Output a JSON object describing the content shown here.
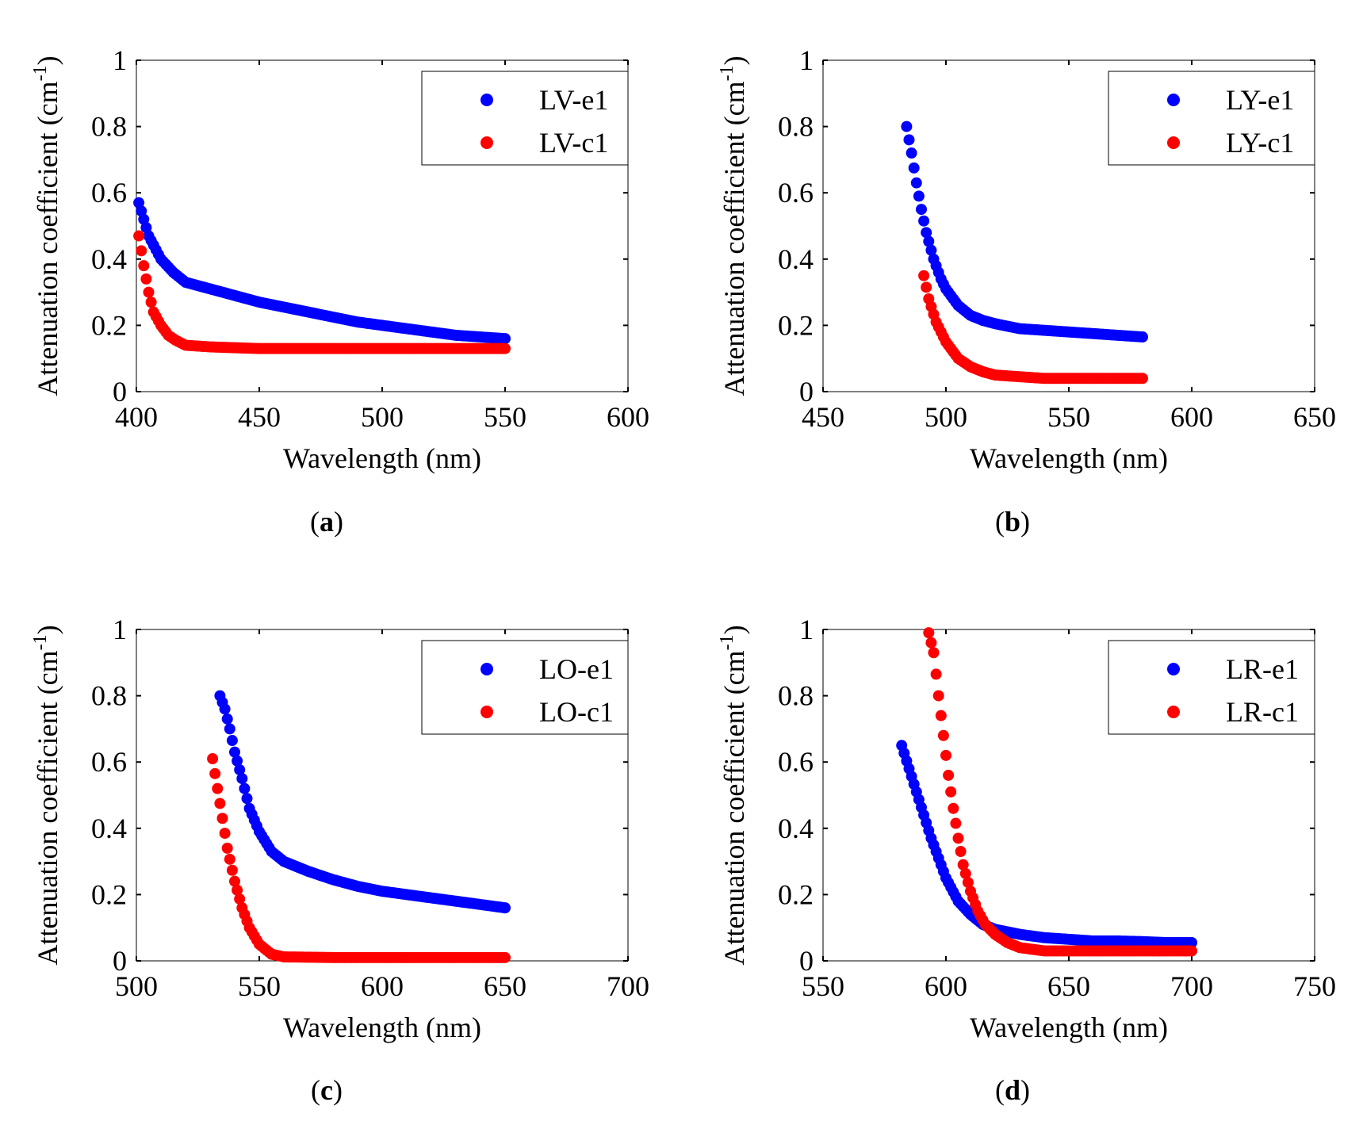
{
  "chart_data": [
    {
      "id": "a",
      "type": "scatter",
      "caption_label": "a",
      "xlabel": "Wavelength (nm)",
      "ylabel": "Attenuation coefficient (cm",
      "ylabel_sup": "-1",
      "ylabel_close": ")",
      "xlim": [
        400,
        600
      ],
      "ylim": [
        0,
        1
      ],
      "xticks": [
        "400",
        "450",
        "500",
        "550",
        "600"
      ],
      "yticks": [
        "0",
        "0.2",
        "0.4",
        "0.6",
        "0.8",
        "1"
      ],
      "legend_position": "top-right",
      "series": [
        {
          "name": "LV-e1",
          "color": "#0000ff",
          "x": [
            401,
            405,
            410,
            415,
            420,
            430,
            440,
            450,
            460,
            470,
            480,
            490,
            500,
            510,
            520,
            530,
            540,
            550
          ],
          "y": [
            0.57,
            0.47,
            0.4,
            0.36,
            0.33,
            0.31,
            0.29,
            0.27,
            0.255,
            0.24,
            0.225,
            0.21,
            0.2,
            0.19,
            0.18,
            0.17,
            0.165,
            0.16
          ]
        },
        {
          "name": "LV-c1",
          "color": "#ff0000",
          "x": [
            401,
            403,
            405,
            407,
            410,
            413,
            416,
            420,
            430,
            450,
            500,
            550
          ],
          "y": [
            0.47,
            0.38,
            0.3,
            0.24,
            0.2,
            0.17,
            0.155,
            0.14,
            0.135,
            0.13,
            0.13,
            0.13
          ]
        }
      ]
    },
    {
      "id": "b",
      "type": "scatter",
      "caption_label": "b",
      "xlabel": "Wavelength (nm)",
      "ylabel": "Attenuation coefficient (cm",
      "ylabel_sup": "-1",
      "ylabel_close": ")",
      "xlim": [
        450,
        650
      ],
      "ylim": [
        0,
        1
      ],
      "xticks": [
        "450",
        "500",
        "550",
        "600",
        "650"
      ],
      "yticks": [
        "0",
        "0.2",
        "0.4",
        "0.6",
        "0.8",
        "1"
      ],
      "legend_position": "top-right",
      "series": [
        {
          "name": "LY-e1",
          "color": "#0000ff",
          "x": [
            484,
            486,
            488,
            490,
            492,
            495,
            498,
            500,
            505,
            510,
            515,
            520,
            530,
            540,
            550,
            560,
            570,
            580
          ],
          "y": [
            0.8,
            0.72,
            0.63,
            0.55,
            0.48,
            0.4,
            0.34,
            0.31,
            0.26,
            0.23,
            0.215,
            0.205,
            0.19,
            0.185,
            0.18,
            0.175,
            0.17,
            0.165
          ]
        },
        {
          "name": "LY-c1",
          "color": "#ff0000",
          "x": [
            491,
            493,
            496,
            500,
            505,
            510,
            515,
            520,
            530,
            540,
            550,
            560,
            570,
            580
          ],
          "y": [
            0.35,
            0.28,
            0.21,
            0.15,
            0.1,
            0.075,
            0.06,
            0.05,
            0.045,
            0.04,
            0.04,
            0.04,
            0.04,
            0.04
          ]
        }
      ]
    },
    {
      "id": "c",
      "type": "scatter",
      "caption_label": "c",
      "xlabel": "Wavelength (nm)",
      "ylabel": "Attenuation coefficient (cm",
      "ylabel_sup": "-1",
      "ylabel_close": ")",
      "xlim": [
        500,
        700
      ],
      "ylim": [
        0,
        1
      ],
      "xticks": [
        "500",
        "550",
        "600",
        "650",
        "700"
      ],
      "yticks": [
        "0",
        "0.2",
        "0.4",
        "0.6",
        "0.8",
        "1"
      ],
      "legend_position": "top-right",
      "series": [
        {
          "name": "LO-e1",
          "color": "#0000ff",
          "x": [
            534,
            536,
            538,
            540,
            543,
            546,
            550,
            555,
            560,
            570,
            580,
            590,
            600,
            610,
            620,
            630,
            640,
            650
          ],
          "y": [
            0.8,
            0.76,
            0.7,
            0.63,
            0.55,
            0.46,
            0.39,
            0.33,
            0.3,
            0.27,
            0.245,
            0.225,
            0.21,
            0.2,
            0.19,
            0.18,
            0.17,
            0.16
          ]
        },
        {
          "name": "LO-c1",
          "color": "#ff0000",
          "x": [
            531,
            533,
            535,
            537,
            540,
            543,
            546,
            550,
            555,
            560,
            580,
            600,
            620,
            650
          ],
          "y": [
            0.61,
            0.52,
            0.43,
            0.34,
            0.24,
            0.16,
            0.1,
            0.05,
            0.02,
            0.012,
            0.01,
            0.01,
            0.01,
            0.01
          ]
        }
      ]
    },
    {
      "id": "d",
      "type": "scatter",
      "caption_label": "d",
      "xlabel": "Wavelength (nm)",
      "ylabel": "Attenuation coefficient (cm",
      "ylabel_sup": "-1",
      "ylabel_close": ")",
      "xlim": [
        550,
        750
      ],
      "ylim": [
        0,
        1
      ],
      "xticks": [
        "550",
        "600",
        "650",
        "700",
        "750"
      ],
      "yticks": [
        "0",
        "0.2",
        "0.4",
        "0.6",
        "0.8",
        "1"
      ],
      "legend_position": "top-right",
      "series": [
        {
          "name": "LR-e1",
          "color": "#0000ff",
          "x": [
            582,
            585,
            588,
            591,
            594,
            597,
            600,
            605,
            610,
            615,
            620,
            630,
            640,
            650,
            660,
            670,
            680,
            690,
            700
          ],
          "y": [
            0.65,
            0.58,
            0.51,
            0.44,
            0.37,
            0.31,
            0.25,
            0.18,
            0.14,
            0.11,
            0.095,
            0.08,
            0.07,
            0.065,
            0.06,
            0.06,
            0.058,
            0.055,
            0.055
          ]
        },
        {
          "name": "LR-c1",
          "color": "#ff0000",
          "x": [
            593,
            595,
            597,
            599,
            601,
            603,
            605,
            607,
            610,
            613,
            616,
            620,
            625,
            630,
            640,
            650,
            660,
            670,
            680,
            690,
            700
          ],
          "y": [
            0.99,
            0.93,
            0.8,
            0.68,
            0.56,
            0.46,
            0.37,
            0.29,
            0.21,
            0.15,
            0.11,
            0.08,
            0.055,
            0.04,
            0.03,
            0.03,
            0.03,
            0.03,
            0.03,
            0.03,
            0.03
          ]
        }
      ]
    }
  ]
}
